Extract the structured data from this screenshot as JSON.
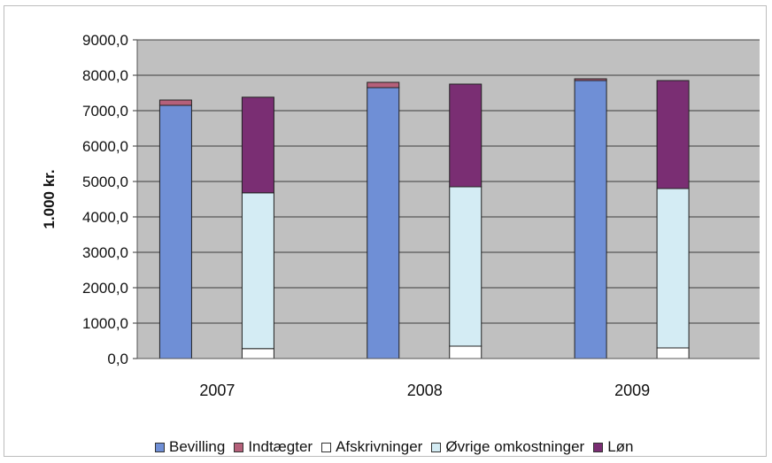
{
  "chart_data": {
    "type": "stacked-bar",
    "title": "",
    "xlabel": "",
    "ylabel": "1.000 kr.",
    "categories": [
      "2007",
      "2008",
      "2009"
    ],
    "ylim": [
      0,
      9000
    ],
    "yticks": [
      "0,0",
      "1000,0",
      "2000,0",
      "3000,0",
      "4000,0",
      "5000,0",
      "6000,0",
      "7000,0",
      "8000,0",
      "9000,0"
    ],
    "grid": true,
    "legend_position": "bottom",
    "series": [
      {
        "name": "Bevilling",
        "stack": "income",
        "color": "#6f8fd6",
        "values": [
          7150,
          7650,
          7850
        ]
      },
      {
        "name": "Indtægter",
        "stack": "income",
        "color": "#b5607a",
        "values": [
          150,
          150,
          50
        ]
      },
      {
        "name": "Afskrivninger",
        "stack": "expenses",
        "color": "#ffffff",
        "values": [
          280,
          350,
          300
        ]
      },
      {
        "name": "Øvrige omkostninger",
        "stack": "expenses",
        "color": "#d4ecf4",
        "values": [
          4400,
          4500,
          4500
        ]
      },
      {
        "name": "Løn",
        "stack": "expenses",
        "color": "#7a2e73",
        "values": [
          2700,
          2900,
          3050
        ]
      }
    ]
  }
}
